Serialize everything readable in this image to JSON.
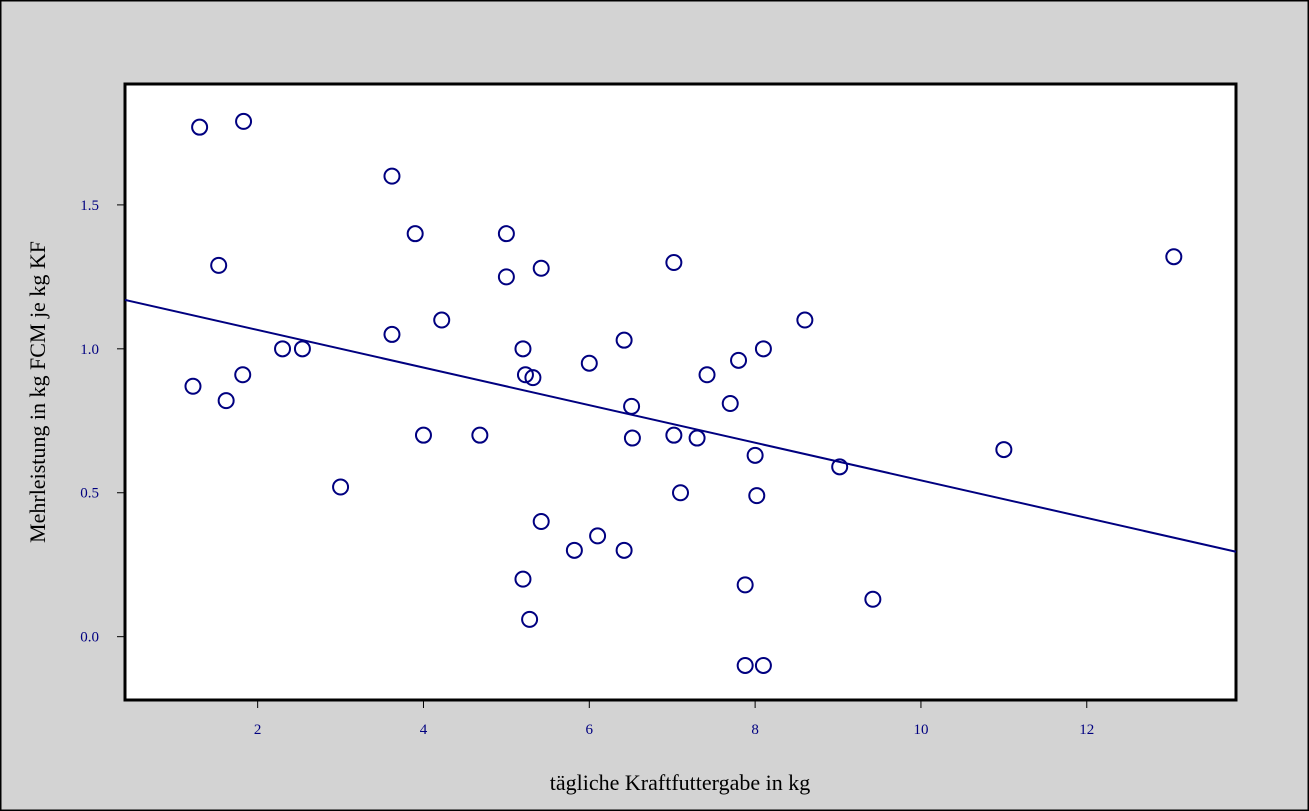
{
  "chart_data": {
    "type": "scatter",
    "title": "",
    "xlabel": "tägliche Kraftfuttergabe in kg",
    "ylabel": "Mehrleistung in kg FCM je kg KF",
    "xlim": [
      0.4,
      13.8
    ],
    "ylim": [
      -0.22,
      1.92
    ],
    "xticks": [
      2,
      4,
      6,
      8,
      10,
      12
    ],
    "xtick_labels": [
      "2",
      "4",
      "6",
      "8",
      "10",
      "12"
    ],
    "yticks": [
      0.0,
      0.5,
      1.0,
      1.5
    ],
    "ytick_labels": [
      "0.0",
      "0.5",
      "1.0",
      "1.5"
    ],
    "grid": false,
    "legend": "none",
    "colors": {
      "outer_background": "#d3d3d3",
      "plot_background": "#ffffff",
      "marks": "#000080",
      "tick_labels": "#000080",
      "frame": "#000000"
    },
    "series": [
      {
        "points": [
          {
            "x": 1.3,
            "y": 1.77
          },
          {
            "x": 1.83,
            "y": 1.79
          },
          {
            "x": 1.53,
            "y": 1.29
          },
          {
            "x": 1.22,
            "y": 0.87
          },
          {
            "x": 1.62,
            "y": 0.82
          },
          {
            "x": 1.82,
            "y": 0.91
          },
          {
            "x": 2.3,
            "y": 1.0
          },
          {
            "x": 2.54,
            "y": 1.0
          },
          {
            "x": 3.0,
            "y": 0.52
          },
          {
            "x": 3.62,
            "y": 1.6
          },
          {
            "x": 3.62,
            "y": 1.05
          },
          {
            "x": 3.9,
            "y": 1.4
          },
          {
            "x": 4.0,
            "y": 0.7
          },
          {
            "x": 4.22,
            "y": 1.1
          },
          {
            "x": 4.68,
            "y": 0.7
          },
          {
            "x": 5.0,
            "y": 1.4
          },
          {
            "x": 5.0,
            "y": 1.25
          },
          {
            "x": 5.42,
            "y": 1.28
          },
          {
            "x": 5.2,
            "y": 1.0
          },
          {
            "x": 5.23,
            "y": 0.91
          },
          {
            "x": 5.32,
            "y": 0.9
          },
          {
            "x": 5.42,
            "y": 0.4
          },
          {
            "x": 5.2,
            "y": 0.2
          },
          {
            "x": 5.28,
            "y": 0.06
          },
          {
            "x": 5.82,
            "y": 0.3
          },
          {
            "x": 6.0,
            "y": 0.95
          },
          {
            "x": 6.1,
            "y": 0.35
          },
          {
            "x": 6.42,
            "y": 1.03
          },
          {
            "x": 6.51,
            "y": 0.8
          },
          {
            "x": 6.52,
            "y": 0.69
          },
          {
            "x": 6.42,
            "y": 0.3
          },
          {
            "x": 7.02,
            "y": 1.3
          },
          {
            "x": 7.02,
            "y": 0.7
          },
          {
            "x": 7.1,
            "y": 0.5
          },
          {
            "x": 7.3,
            "y": 0.69
          },
          {
            "x": 7.42,
            "y": 0.91
          },
          {
            "x": 7.7,
            "y": 0.81
          },
          {
            "x": 7.8,
            "y": 0.96
          },
          {
            "x": 7.88,
            "y": 0.18
          },
          {
            "x": 7.88,
            "y": -0.1
          },
          {
            "x": 8.0,
            "y": 0.63
          },
          {
            "x": 8.02,
            "y": 0.49
          },
          {
            "x": 8.1,
            "y": 1.0
          },
          {
            "x": 8.1,
            "y": -0.1
          },
          {
            "x": 8.6,
            "y": 1.1
          },
          {
            "x": 9.02,
            "y": 0.59
          },
          {
            "x": 9.42,
            "y": 0.13
          },
          {
            "x": 11.0,
            "y": 0.65
          },
          {
            "x": 13.05,
            "y": 1.32
          }
        ]
      }
    ],
    "regression_line": {
      "x": [
        0.4,
        13.8
      ],
      "y": [
        1.17,
        0.295
      ]
    }
  }
}
